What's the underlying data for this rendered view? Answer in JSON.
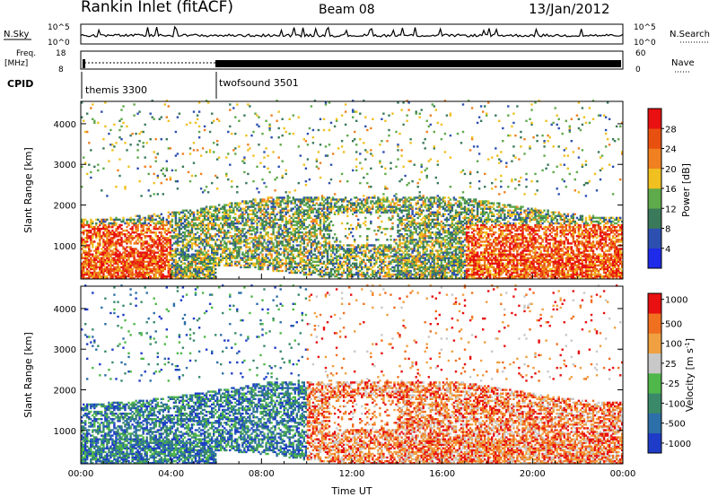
{
  "header": {
    "station": "Rankin Inlet (fitACF)",
    "beam": "Beam 08",
    "date": "13/Jan/2012"
  },
  "summary_panels": {
    "nsky_label": "N.Sky",
    "nsearch_label": "N.Search",
    "log_ticks": [
      "10^5",
      "10^0"
    ],
    "freq_label": "Freq.",
    "freq_unit": "[MHz]",
    "freq_ticks": [
      "18",
      "8"
    ],
    "nave_label": "Nave",
    "nave_ticks": [
      "60",
      "0"
    ],
    "cpid_label": "CPID",
    "cpid_modes": [
      {
        "name": "themis 3300",
        "start_hour": 0,
        "end_hour": 6
      },
      {
        "name": "twofsound 3501",
        "start_hour": 6,
        "end_hour": 24
      }
    ]
  },
  "chart_data": [
    {
      "type": "heatmap",
      "name": "power",
      "ylabel": "Slant Range [km]",
      "xlim": [
        0,
        24
      ],
      "ylim": [
        180,
        4550
      ],
      "yticks": [
        "1000",
        "2000",
        "3000",
        "4000"
      ],
      "colorbar_label": "Power [dB]",
      "colorbar_ticks": [
        "4",
        "8",
        "12",
        "16",
        "20",
        "24",
        "28"
      ],
      "colors": [
        "#1e2be8",
        "#2d4fb0",
        "#3a7a5a",
        "#5faa4a",
        "#f0c020",
        "#f08020",
        "#e85010",
        "#e81010"
      ]
    },
    {
      "type": "heatmap",
      "name": "velocity",
      "ylabel": "Slant Range [km]",
      "xlabel": "Time UT",
      "xlim": [
        0,
        24
      ],
      "ylim": [
        180,
        4550
      ],
      "xticks": [
        "00:00",
        "04:00",
        "08:00",
        "12:00",
        "16:00",
        "20:00",
        "00:00"
      ],
      "yticks": [
        "1000",
        "2000",
        "3000",
        "4000"
      ],
      "colorbar_label": "Velocity [m s",
      "colorbar_label_sup": "-1",
      "colorbar_label_end": "]",
      "colorbar_ticks": [
        "1000",
        "500",
        "100",
        "25",
        "-25",
        "-100",
        "-500",
        "-1000"
      ],
      "colors": [
        "#1e3cc8",
        "#2d6fa8",
        "#3a8a6a",
        "#50b84a",
        "#c8c8c8",
        "#f0a040",
        "#f07020",
        "#e81010"
      ]
    }
  ]
}
